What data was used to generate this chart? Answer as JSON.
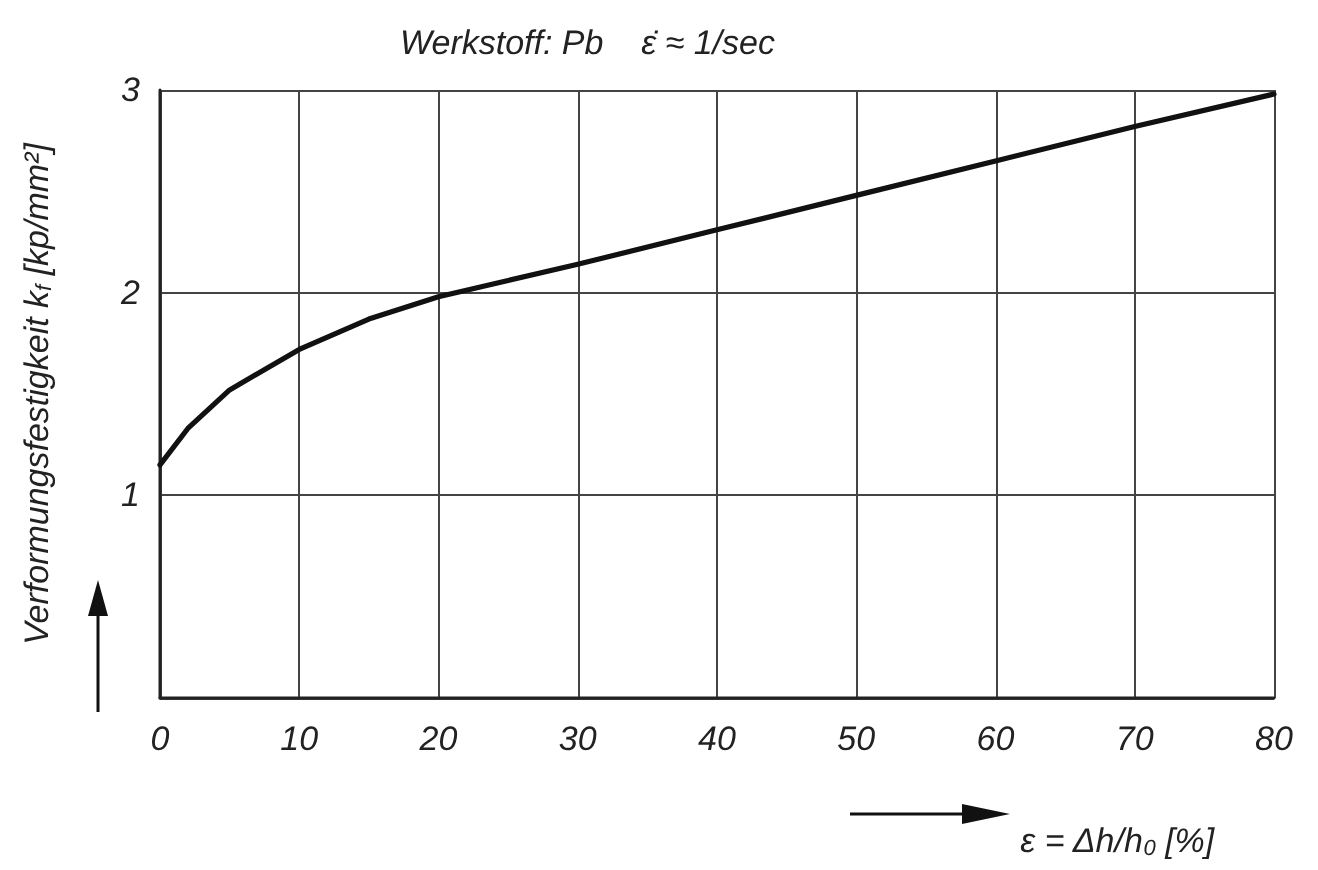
{
  "chart_data": {
    "type": "line",
    "title": "Werkstoff: Pb    ε̇ ≈ 1/sec",
    "xlabel": "ε = Δh/h$_{0}$ [%]",
    "ylabel": "Verformungsfestigkeit k$_{f}$ [kp/mm²]",
    "x": [
      0,
      2,
      5,
      10,
      15,
      20,
      25,
      30,
      40,
      50,
      60,
      70,
      80
    ],
    "series": [
      {
        "color": "#111111",
        "values": [
          1.15,
          1.33,
          1.52,
          1.72,
          1.87,
          1.98,
          2.06,
          2.14,
          2.31,
          2.48,
          2.65,
          2.82,
          2.98
        ]
      }
    ],
    "xlim": [
      0,
      80
    ],
    "ylim": [
      0,
      3
    ],
    "xticks": [
      0,
      10,
      20,
      30,
      40,
      50,
      60,
      70,
      80
    ],
    "yticks": [
      {
        "value": 0,
        "label": null
      },
      1,
      2,
      3
    ],
    "grid": true,
    "marker": "none",
    "line_style": "solid"
  }
}
